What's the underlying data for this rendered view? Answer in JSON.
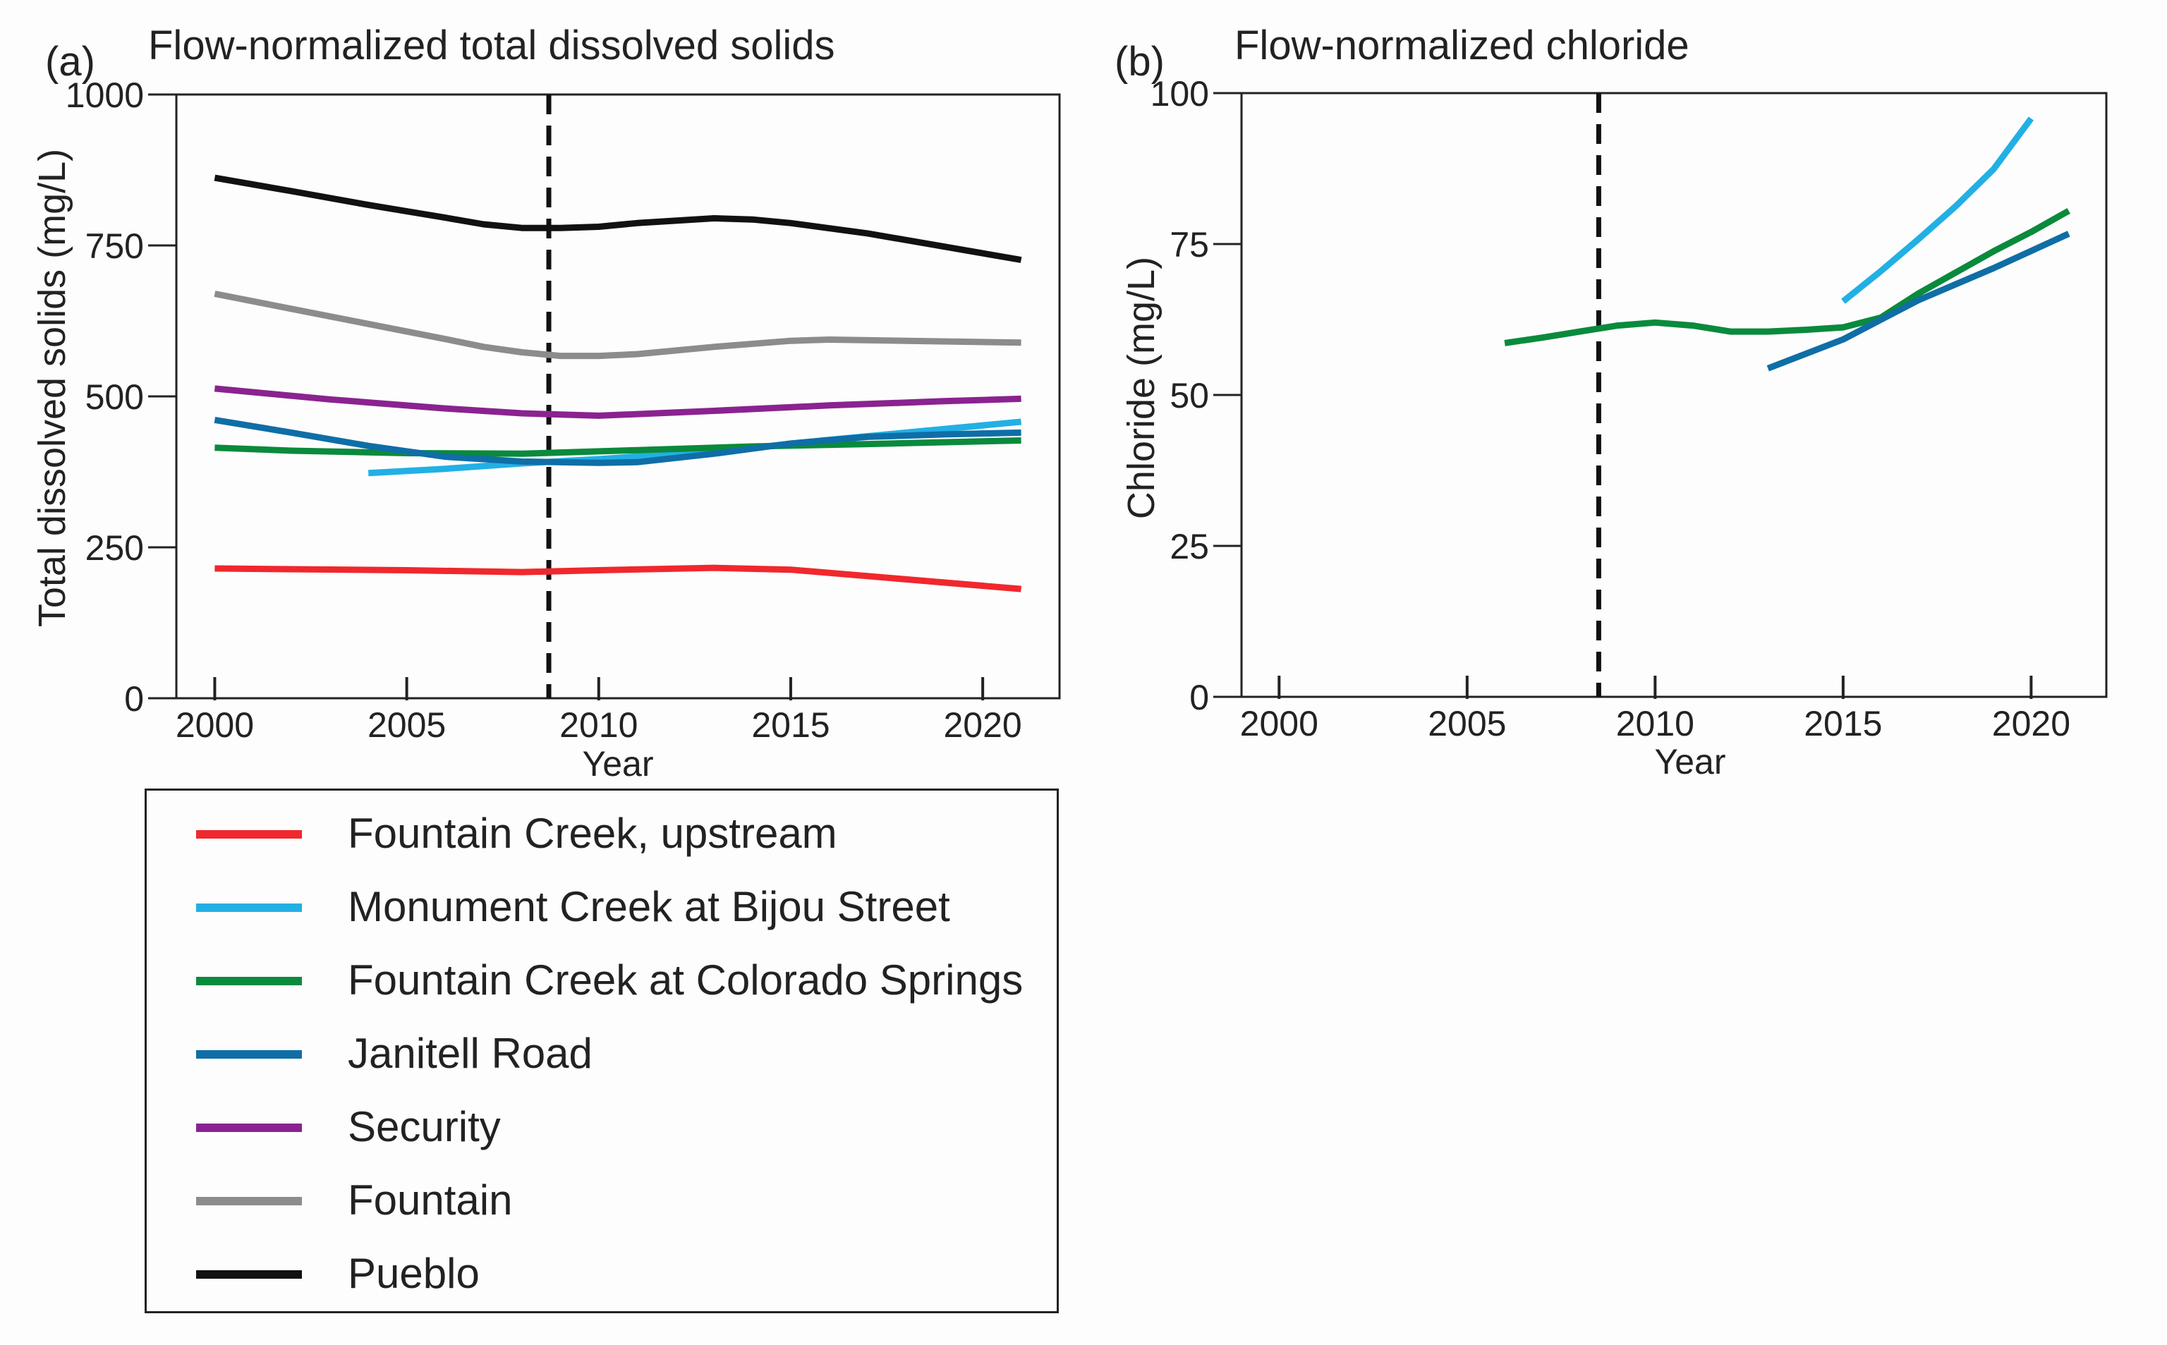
{
  "panels": [
    {
      "panel_label": "(a)",
      "title": "Flow-normalized total dissolved solids",
      "xlabel": "Year",
      "ylabel": "Total dissolved solids (mg/L)",
      "xticks": [
        "2000",
        "2005",
        "2010",
        "2015",
        "2020"
      ],
      "yticks": [
        "0",
        "250",
        "500",
        "750",
        "1000"
      ]
    },
    {
      "panel_label": "(b)",
      "title": "Flow-normalized chloride",
      "xlabel": "Year",
      "ylabel": "Chloride (mg/L)",
      "xticks": [
        "2000",
        "2005",
        "2010",
        "2015",
        "2020"
      ],
      "yticks": [
        "0",
        "25",
        "50",
        "75",
        "100"
      ]
    }
  ],
  "legend": [
    {
      "label": "Fountain Creek, upstream",
      "color": "#f0282d"
    },
    {
      "label": "Monument Creek at Bijou Street",
      "color": "#22b0e4"
    },
    {
      "label": "Fountain Creek at Colorado Springs",
      "color": "#0a8a3c"
    },
    {
      "label": "Janitell Road",
      "color": "#0f6ea6"
    },
    {
      "label": "Security",
      "color": "#8a2390"
    },
    {
      "label": "Fountain",
      "color": "#8c8c8c"
    },
    {
      "label": "Pueblo",
      "color": "#111111"
    }
  ],
  "chart_data": [
    {
      "type": "line",
      "title": "Flow-normalized total dissolved solids",
      "xlabel": "Year",
      "ylabel": "Total dissolved solids (mg/L)",
      "xlim": [
        1999,
        2022
      ],
      "ylim": [
        0,
        1000
      ],
      "reference_line_x": 2008.7,
      "series": [
        {
          "name": "Fountain Creek, upstream",
          "color": "#f0282d",
          "x": [
            2000,
            2005,
            2008,
            2010,
            2013,
            2015,
            2018,
            2021
          ],
          "y": [
            215,
            212,
            209,
            212,
            216,
            213,
            197,
            181
          ]
        },
        {
          "name": "Monument Creek at Bijou Street",
          "color": "#22b0e4",
          "x": [
            2004,
            2006,
            2008,
            2010,
            2012,
            2014,
            2016,
            2018,
            2021
          ],
          "y": [
            373,
            380,
            389,
            396,
            405,
            415,
            428,
            440,
            458
          ]
        },
        {
          "name": "Fountain Creek at Colorado Springs",
          "color": "#0a8a3c",
          "x": [
            2000,
            2002,
            2005,
            2008,
            2011,
            2014,
            2017,
            2021
          ],
          "y": [
            415,
            410,
            406,
            405,
            411,
            417,
            421,
            427
          ]
        },
        {
          "name": "Janitell Road",
          "color": "#0f6ea6",
          "x": [
            2000,
            2002,
            2004,
            2006,
            2008,
            2010,
            2011,
            2013,
            2015,
            2017,
            2019,
            2021
          ],
          "y": [
            461,
            440,
            418,
            400,
            392,
            390,
            391,
            405,
            422,
            433,
            437,
            440
          ]
        },
        {
          "name": "Security",
          "color": "#8a2390",
          "x": [
            2000,
            2003,
            2006,
            2008,
            2010,
            2013,
            2016,
            2019,
            2021
          ],
          "y": [
            513,
            495,
            480,
            472,
            468,
            476,
            485,
            492,
            496
          ]
        },
        {
          "name": "Fountain",
          "color": "#8c8c8c",
          "x": [
            2000,
            2002,
            2004,
            2006,
            2007,
            2008,
            2009,
            2010,
            2011,
            2013,
            2015,
            2016,
            2018,
            2021
          ],
          "y": [
            670,
            645,
            620,
            595,
            582,
            573,
            567,
            567,
            570,
            582,
            592,
            594,
            592,
            589
          ]
        },
        {
          "name": "Pueblo",
          "color": "#111111",
          "x": [
            2000,
            2002,
            2004,
            2006,
            2007,
            2008,
            2009,
            2010,
            2011,
            2013,
            2014,
            2015,
            2017,
            2019,
            2021
          ],
          "y": [
            862,
            840,
            817,
            796,
            785,
            779,
            779,
            781,
            787,
            795,
            793,
            787,
            770,
            748,
            726
          ]
        }
      ]
    },
    {
      "type": "line",
      "title": "Flow-normalized chloride",
      "xlabel": "Year",
      "ylabel": "Chloride (mg/L)",
      "xlim": [
        1999,
        2022
      ],
      "ylim": [
        0,
        100
      ],
      "reference_line_x": 2008.5,
      "series": [
        {
          "name": "Monument Creek at Bijou Street",
          "color": "#22b0e4",
          "x": [
            2015,
            2016,
            2017,
            2018,
            2019,
            2020
          ],
          "y": [
            65.5,
            70.5,
            75.8,
            81.3,
            87.4,
            95.8
          ]
        },
        {
          "name": "Fountain Creek at Colorado Springs",
          "color": "#0a8a3c",
          "x": [
            2006,
            2007,
            2008,
            2009,
            2010,
            2011,
            2012,
            2013,
            2014,
            2015,
            2016,
            2017,
            2018,
            2019,
            2020,
            2021
          ],
          "y": [
            58.6,
            59.5,
            60.5,
            61.5,
            62.0,
            61.5,
            60.5,
            60.5,
            60.8,
            61.2,
            62.8,
            66.8,
            70.3,
            73.8,
            77.0,
            80.5
          ]
        },
        {
          "name": "Janitell Road",
          "color": "#0f6ea6",
          "x": [
            2013,
            2015,
            2017,
            2019,
            2021
          ],
          "y": [
            54.4,
            59.2,
            65.7,
            71.0,
            76.7
          ]
        }
      ]
    }
  ]
}
